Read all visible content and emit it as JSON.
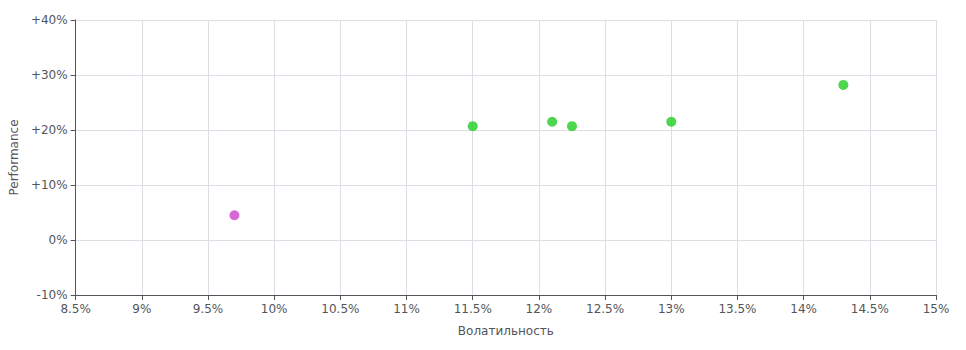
{
  "chart_data": {
    "type": "scatter",
    "xlabel": "Волатильность",
    "ylabel": "Performance",
    "x": [
      0.097,
      0.115,
      0.121,
      0.1225,
      0.13,
      0.143
    ],
    "values": [
      0.045,
      0.207,
      0.215,
      0.207,
      0.215,
      0.282
    ],
    "colors": [
      "#cc44cc",
      "#22cc22",
      "#22cc22",
      "#22cc22",
      "#22cc22",
      "#22cc22"
    ],
    "marker": "circle",
    "xlim": [
      0.085,
      0.15
    ],
    "ylim": [
      -0.1,
      0.4
    ],
    "xticks": [
      {
        "value": 0.085,
        "label": "8.5%"
      },
      {
        "value": 0.09,
        "label": "9%"
      },
      {
        "value": 0.095,
        "label": "9.5%"
      },
      {
        "value": 0.1,
        "label": "10%"
      },
      {
        "value": 0.105,
        "label": "10.5%"
      },
      {
        "value": 0.11,
        "label": "11%"
      },
      {
        "value": 0.115,
        "label": "11.5%"
      },
      {
        "value": 0.12,
        "label": "12%"
      },
      {
        "value": 0.125,
        "label": "12.5%"
      },
      {
        "value": 0.13,
        "label": "13%"
      },
      {
        "value": 0.135,
        "label": "13.5%"
      },
      {
        "value": 0.14,
        "label": "14%"
      },
      {
        "value": 0.145,
        "label": "14.5%"
      },
      {
        "value": 0.15,
        "label": "15%"
      }
    ],
    "yticks": [
      {
        "value": -0.1,
        "label": "-10%"
      },
      {
        "value": 0.0,
        "label": "0%"
      },
      {
        "value": 0.1,
        "label": "+10%"
      },
      {
        "value": 0.2,
        "label": "+20%"
      },
      {
        "value": 0.3,
        "label": "+30%"
      },
      {
        "value": 0.4,
        "label": "+40%"
      }
    ],
    "grid": true
  }
}
